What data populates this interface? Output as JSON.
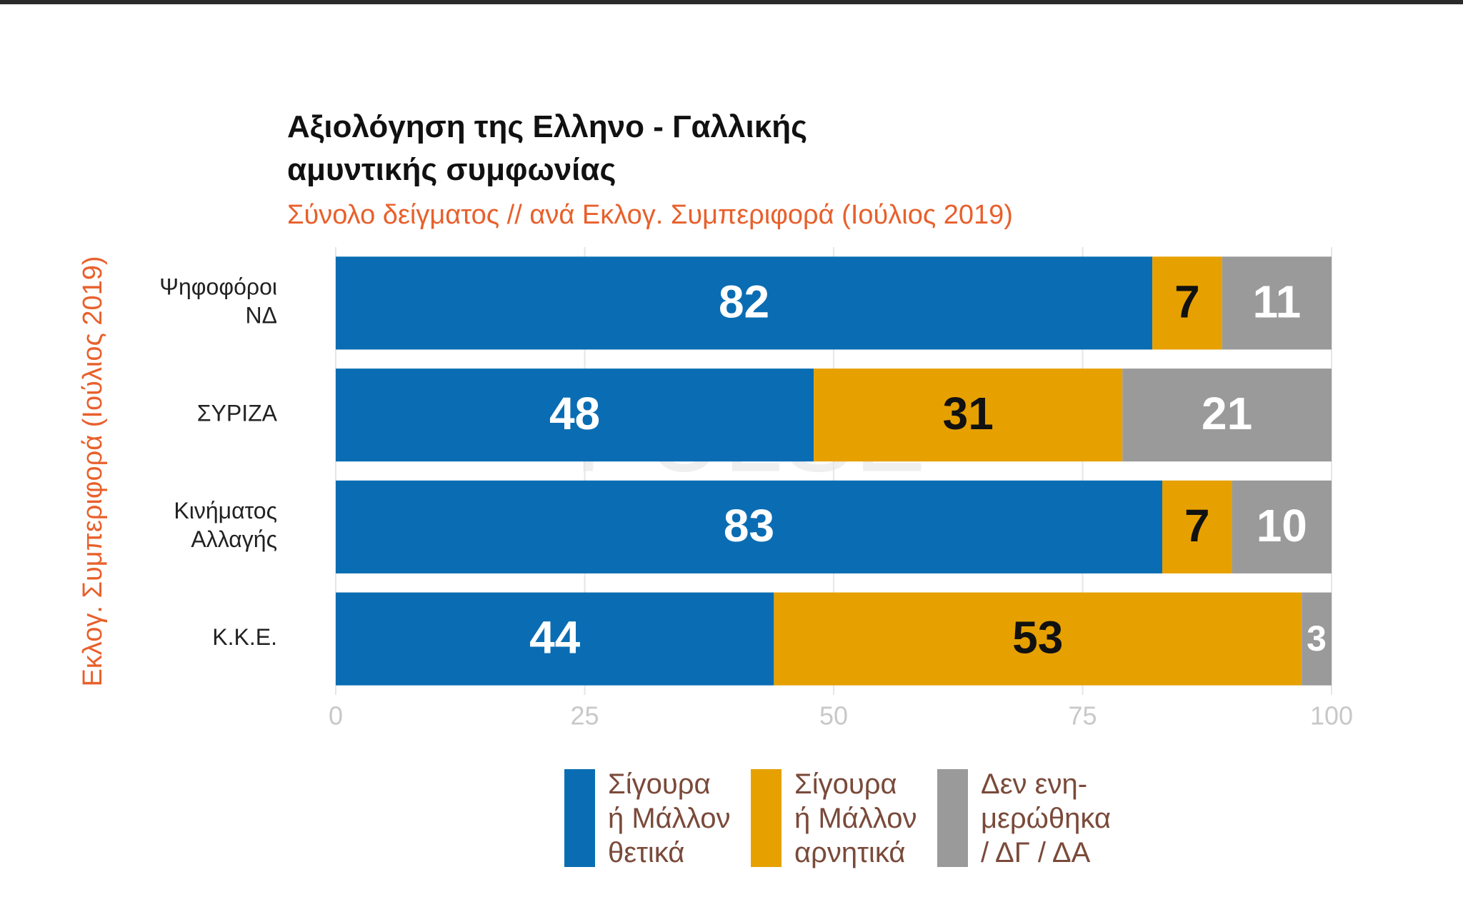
{
  "chart_data": {
    "type": "stacked-bar-horizontal",
    "title": "Αξιολόγηση της Ελληνο - Γαλλικής\nαμυντικής συμφωνίας",
    "subtitle": "Σύνολο δείγματος // ανά Εκλογ. Συμπεριφορά (Ιούλιος 2019)",
    "y_label": "Εκλογ. Συμπεριφορά (Ιούλιος 2019)",
    "watermark": "PULSE",
    "categories": [
      "Ψηφοφόροι\nΝΔ",
      "ΣΥΡΙΖΑ",
      "Κινήματος\nΑλλαγής",
      "Κ.Κ.Ε."
    ],
    "series": [
      {
        "name": "Σίγουρα\nή Μάλλον\nθετικά",
        "color": "#0a6db3",
        "label_color": "#ffffff",
        "values": [
          82,
          48,
          83,
          44
        ]
      },
      {
        "name": "Σίγουρα\nή Μάλλον\nαρνητικά",
        "color": "#e6a000",
        "label_color": "#111111",
        "values": [
          7,
          31,
          7,
          53
        ]
      },
      {
        "name": "Δεν ενη-\nμερώθηκα\n/ ΔΓ / ΔΑ",
        "color": "#9a9a9a",
        "label_color": "#ffffff",
        "values": [
          11,
          21,
          10,
          3
        ]
      }
    ],
    "xlim": [
      0,
      100
    ],
    "xticks": [
      0,
      25,
      50,
      75,
      100
    ],
    "grid": true
  }
}
